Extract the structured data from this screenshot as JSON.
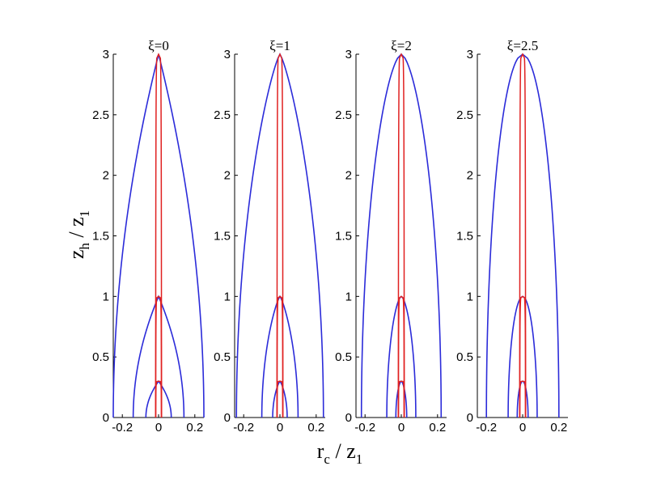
{
  "chart_data": {
    "type": "line",
    "xlabel": {
      "main": "r",
      "sub": "c",
      "tail": " / z",
      "tail_sub": "1"
    },
    "ylabel": {
      "main": "z",
      "sub": "h",
      "tail": " / z",
      "tail_sub": "1"
    },
    "ylim": [
      0,
      3
    ],
    "yticks": [
      0,
      0.5,
      1,
      1.5,
      2,
      2.5,
      3
    ],
    "ytick_labels": [
      "0",
      "0.5",
      "1",
      "1.5",
      "2",
      "2.5",
      "3"
    ],
    "xlim": [
      -0.25,
      0.25
    ],
    "xticks": [
      -0.2,
      0,
      0.2
    ],
    "xtick_labels": [
      "-0.2",
      "0",
      "0.2"
    ],
    "grid": false,
    "colors": {
      "outer": "#2b2bd9",
      "inner": "#e02020"
    },
    "panels": [
      {
        "title": "ξ=0",
        "xi": 0
      },
      {
        "title": "ξ=1",
        "xi": 1
      },
      {
        "title": "ξ=2",
        "xi": 2
      },
      {
        "title": "ξ=2.5",
        "xi": 2.5
      }
    ],
    "series": [
      {
        "kind": "outer",
        "height": 3,
        "half_width_at_base": [
          0.25,
          0.24,
          0.22,
          0.2
        ]
      },
      {
        "kind": "outer",
        "height": 1,
        "half_width_at_base": [
          0.14,
          0.1,
          0.08,
          0.08
        ]
      },
      {
        "kind": "outer",
        "height": 0.3,
        "half_width_at_base": [
          0.07,
          0.04,
          0.03,
          0.03
        ]
      },
      {
        "kind": "inner",
        "height": 3,
        "half_width_at_base": [
          0.016,
          0.016,
          0.016,
          0.016
        ]
      },
      {
        "kind": "inner",
        "height": 1,
        "half_width_at_base": [
          0.016,
          0.016,
          0.016,
          0.016
        ]
      },
      {
        "kind": "inner",
        "height": 0.3,
        "half_width_at_base": [
          0.016,
          0.016,
          0.016,
          0.016
        ]
      }
    ]
  }
}
